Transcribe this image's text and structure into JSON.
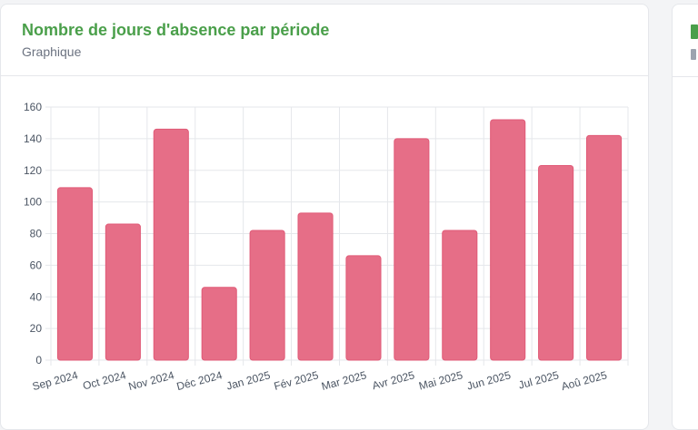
{
  "card": {
    "title": "Nombre de jours d'absence par période",
    "subtitle": "Graphique"
  },
  "colors": {
    "bar_fill": "#e66e87",
    "bar_stroke": "#e05a77",
    "title": "#4a9f4a",
    "grid": "#e5e7eb"
  },
  "chart_data": {
    "type": "bar",
    "categories": [
      "Sep 2024",
      "Oct 2024",
      "Nov 2024",
      "Déc 2024",
      "Jan 2025",
      "Fév 2025",
      "Mar 2025",
      "Avr 2025",
      "Mai 2025",
      "Jun 2025",
      "Jul 2025",
      "Aoû 2025"
    ],
    "values": [
      109,
      86,
      146,
      46,
      82,
      93,
      66,
      140,
      82,
      152,
      123,
      142
    ],
    "ylim": [
      0,
      160
    ],
    "yticks": [
      "0",
      "20",
      "40",
      "60",
      "80",
      "100",
      "120",
      "140",
      "160"
    ],
    "grid": true,
    "legend": "none"
  }
}
